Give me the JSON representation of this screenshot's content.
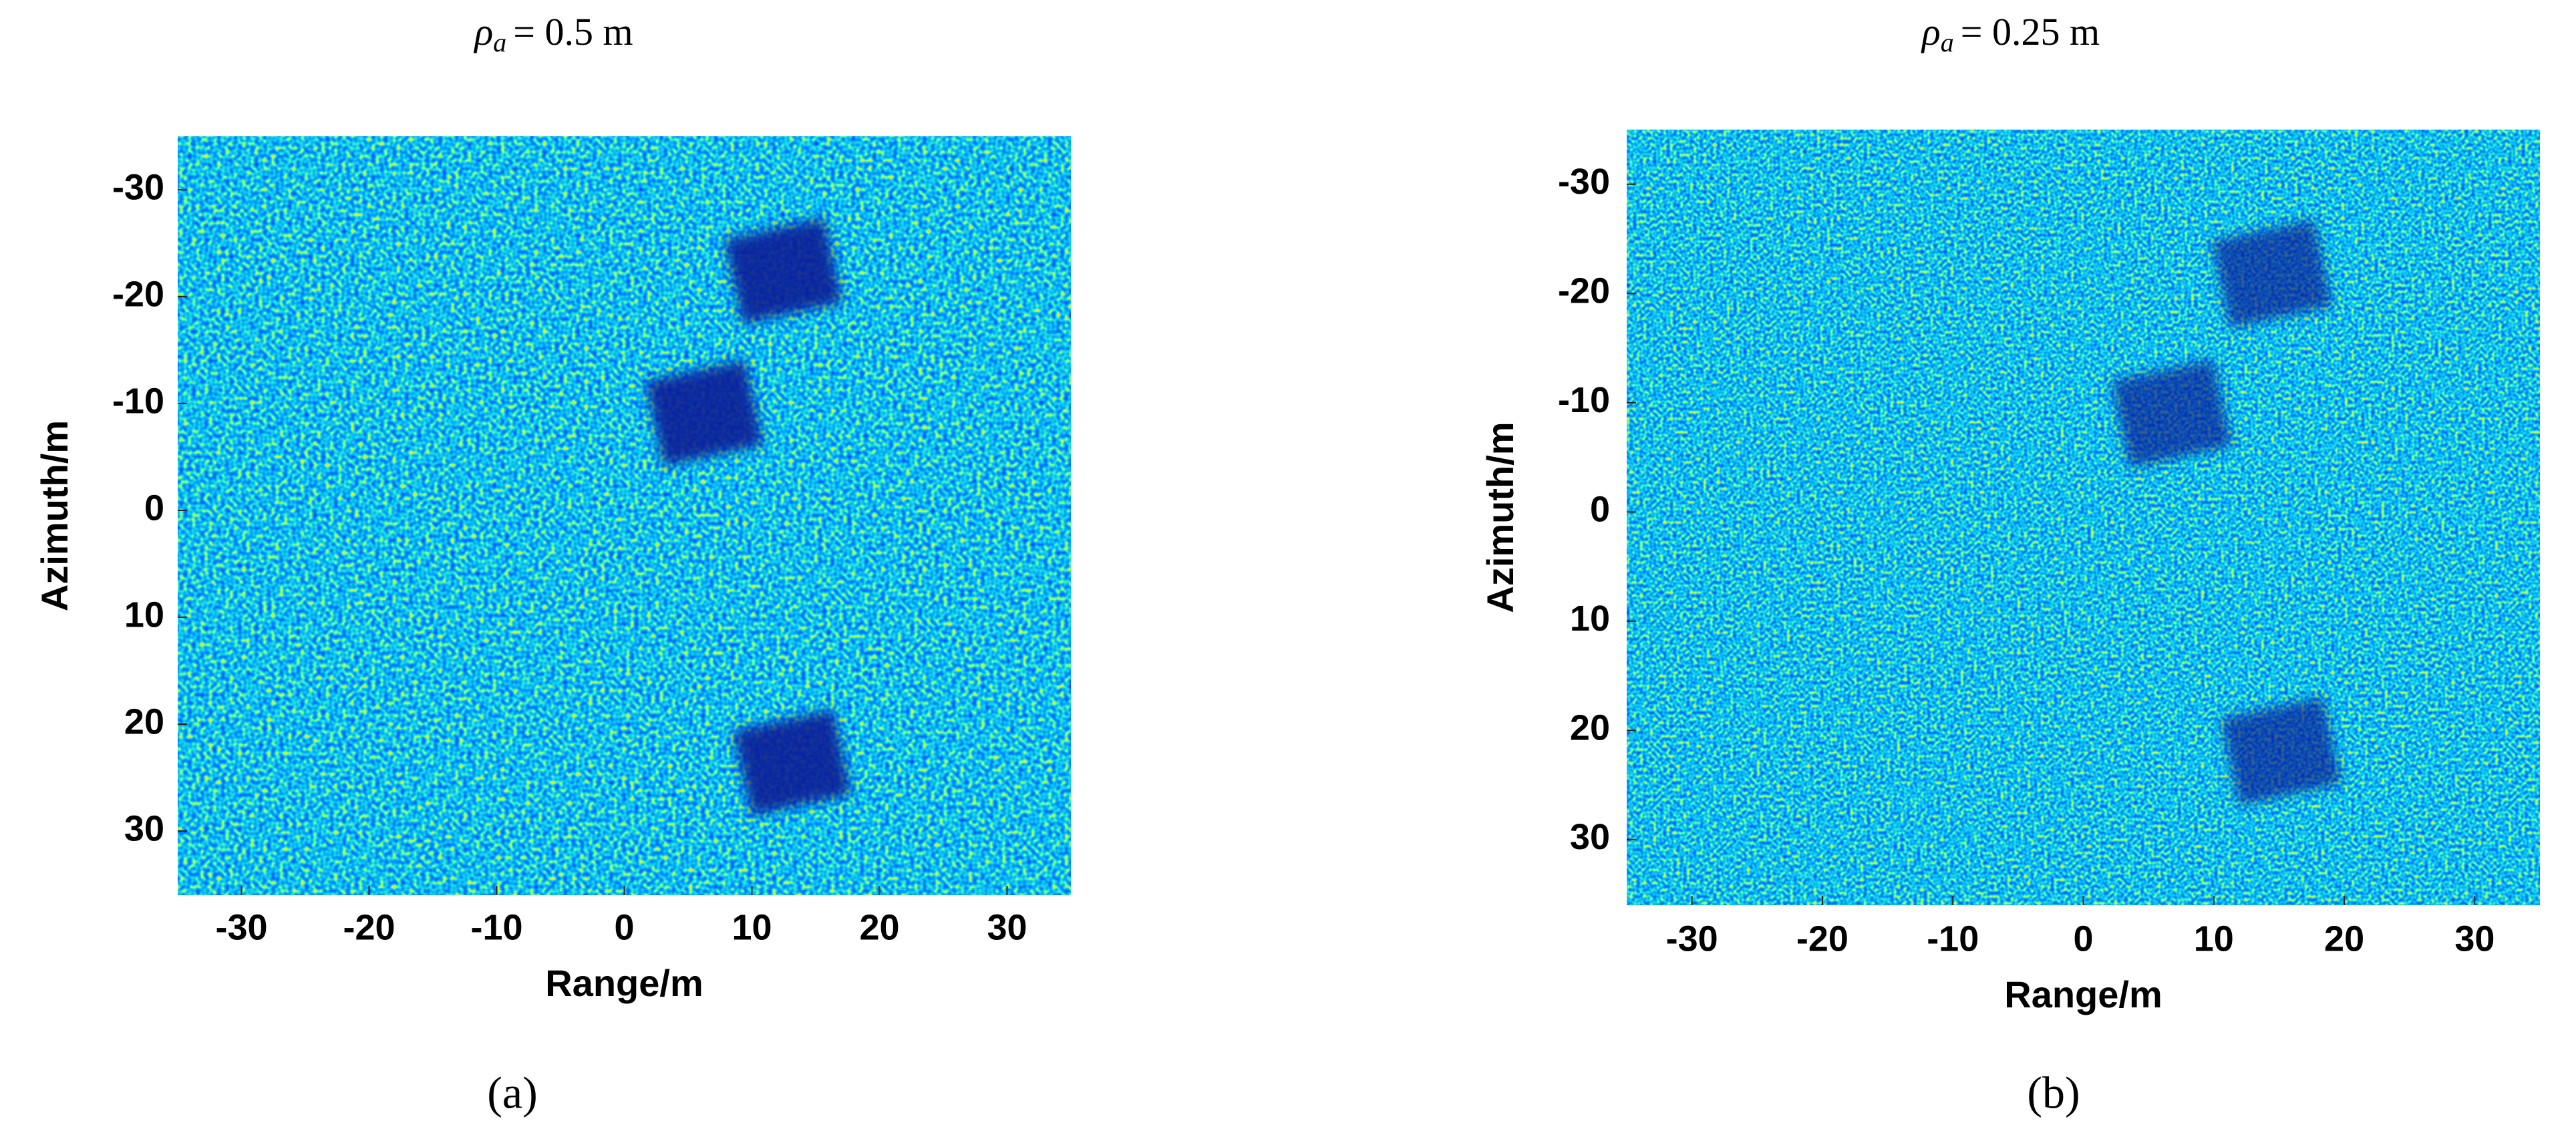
{
  "chart_data": [
    {
      "type": "heatmap",
      "title": {
        "symbol": "ρ",
        "subscript": "a",
        "text": "= 0.5 m"
      },
      "x_label": "Range/m",
      "y_label": "Azimuth/m",
      "caption": "(a)",
      "xlim": [
        -35,
        35
      ],
      "ylim": [
        -35,
        36
      ],
      "y_inverted": true,
      "xticks": [
        -30,
        -20,
        -10,
        0,
        10,
        20,
        30
      ],
      "yticks": [
        -30,
        -20,
        -10,
        0,
        10,
        20,
        30
      ],
      "targets": {
        "x": [
          12.6,
          6.4,
          13.3
        ],
        "y": [
          -21.7,
          -8.4,
          24.3
        ]
      }
    },
    {
      "type": "heatmap",
      "title": {
        "symbol": "ρ",
        "subscript": "a",
        "text": "= 0.25 m"
      },
      "x_label": "Range/m",
      "y_label": "Azimuth/m",
      "caption": "(b)",
      "xlim": [
        -35,
        35
      ],
      "ylim": [
        -35,
        36
      ],
      "y_inverted": true,
      "xticks": [
        -30,
        -20,
        -10,
        0,
        10,
        20,
        30
      ],
      "yticks": [
        -30,
        -20,
        -10,
        0,
        10,
        20,
        30
      ],
      "targets": {
        "x": [
          14.6,
          6.9,
          15.3
        ],
        "y": [
          -21.1,
          -8.3,
          22.6
        ]
      }
    }
  ]
}
